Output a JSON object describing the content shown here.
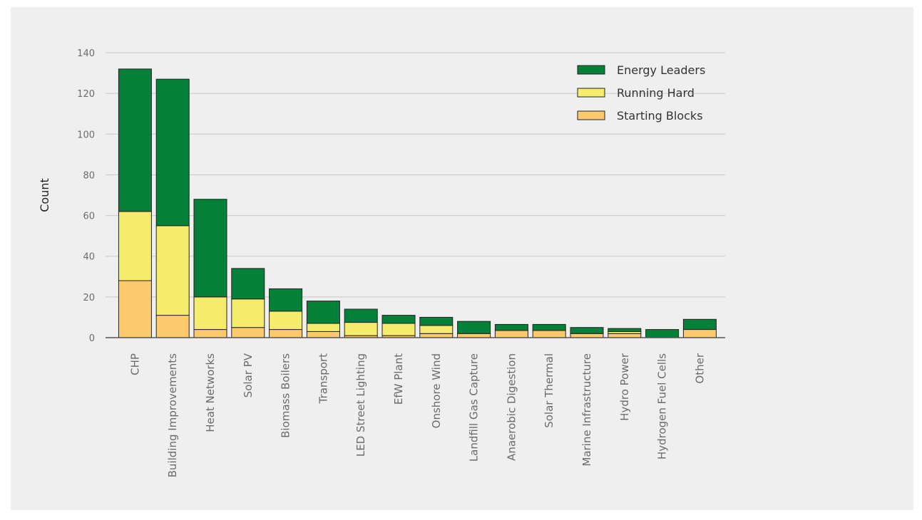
{
  "chart_data": {
    "type": "bar",
    "stacked": true,
    "title": "",
    "xlabel": "",
    "ylabel": "Count",
    "ylim": [
      0,
      140
    ],
    "yticks": [
      0,
      20,
      40,
      60,
      80,
      100,
      120,
      140
    ],
    "grid": true,
    "legend_position": "top-right",
    "categories": [
      "CHP",
      "Building Improvements",
      "Heat Networks",
      "Solar PV",
      "Biomass Boilers",
      "Transport",
      "LED Street Lighting",
      "EfW Plant",
      "Onshore Wind",
      "Landfill Gas Capture",
      "Anaerobic Digestion",
      "Solar Thermal",
      "Marine Infrastructure",
      "Hydro Power",
      "Hydrogen Fuel Cells",
      "Other"
    ],
    "series": [
      {
        "name": "Starting Blocks",
        "color": "#fdc96d",
        "values": [
          28,
          11,
          4,
          5,
          4,
          3,
          1,
          1,
          2,
          2,
          3.5,
          3.5,
          2,
          2,
          0,
          4
        ]
      },
      {
        "name": "Running Hard",
        "color": "#f6ec6c",
        "values": [
          34,
          44,
          16,
          14,
          9,
          4,
          6.5,
          6,
          4,
          0,
          0,
          0,
          0,
          1,
          0,
          0
        ]
      },
      {
        "name": "Energy Leaders",
        "color": "#058038",
        "values": [
          70,
          72,
          48,
          15,
          11,
          11,
          6.5,
          4,
          4,
          6,
          3,
          3,
          3,
          1.5,
          4,
          5
        ]
      }
    ],
    "legend_order": [
      "Energy Leaders",
      "Running Hard",
      "Starting Blocks"
    ]
  }
}
